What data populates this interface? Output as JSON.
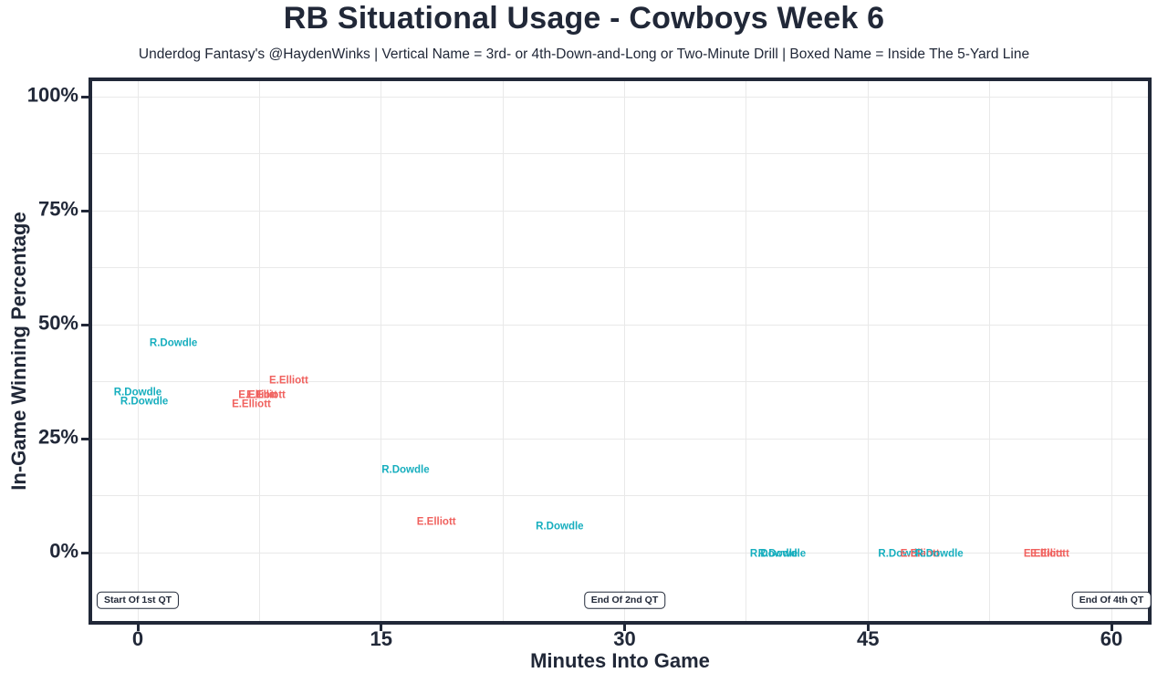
{
  "header": {
    "title": "RB Situational Usage - Cowboys Week 6",
    "subtitle": "Underdog Fantasy's @HaydenWinks | Vertical Name = 3rd- or 4th-Down-and-Long or Two-Minute Drill | Boxed Name = Inside The 5-Yard Line"
  },
  "colors": {
    "ink": "#212838",
    "gridline": "#e9e9e9",
    "background": "#ffffff"
  },
  "chart_data": {
    "type": "scatter",
    "title": "RB Situational Usage - Cowboys Week 6",
    "subtitle": "Underdog Fantasy's @HaydenWinks | Vertical Name = 3rd- or 4th-Down-and-Long or Two-Minute Drill | Boxed Name = Inside The 5-Yard Line",
    "xlabel": "Minutes Into Game",
    "ylabel": "In-Game Winning Percentage",
    "xlim": [
      -2.8,
      62.3
    ],
    "ylim": [
      -15,
      103.4
    ],
    "grid": "on, light gray, major ticks every 15 min / 25% with minor lines at midpoints",
    "legend": "none (points drawn as colored player-name text labels)",
    "x_ticks": [
      {
        "value": 0,
        "label": "0"
      },
      {
        "value": 15,
        "label": "15"
      },
      {
        "value": 30,
        "label": "30"
      },
      {
        "value": 45,
        "label": "45"
      },
      {
        "value": 60,
        "label": "60"
      }
    ],
    "y_ticks": [
      {
        "value": 0,
        "label": "0%"
      },
      {
        "value": 25,
        "label": "25%"
      },
      {
        "value": 50,
        "label": "50%"
      },
      {
        "value": 75,
        "label": "75%"
      },
      {
        "value": 100,
        "label": "100%"
      }
    ],
    "series_colors": {
      "R.Dowdle": "#16aebe",
      "E.Elliott": "#f0615e"
    },
    "points": [
      {
        "player": "R.Dowdle",
        "minutes": 2.2,
        "win_pct": 45.8
      },
      {
        "player": "R.Dowdle",
        "minutes": 0.0,
        "win_pct": 35.0
      },
      {
        "player": "R.Dowdle",
        "minutes": 0.4,
        "win_pct": 33.0
      },
      {
        "player": "E.Elliott",
        "minutes": 9.3,
        "win_pct": 37.6
      },
      {
        "player": "E.Elliott",
        "minutes": 7.4,
        "win_pct": 34.4
      },
      {
        "player": "E.Elliott",
        "minutes": 7.9,
        "win_pct": 34.4
      },
      {
        "player": "E.Elliott",
        "minutes": 7.0,
        "win_pct": 32.4
      },
      {
        "player": "R.Dowdle",
        "minutes": 16.5,
        "win_pct": 18.0
      },
      {
        "player": "E.Elliott",
        "minutes": 18.4,
        "win_pct": 6.6
      },
      {
        "player": "R.Dowdle",
        "minutes": 26.0,
        "win_pct": 5.6
      },
      {
        "player": "R.Dowdle",
        "minutes": 39.2,
        "win_pct": -0.4
      },
      {
        "player": "R.Dowdle",
        "minutes": 39.7,
        "win_pct": -0.4
      },
      {
        "player": "R.Dowdle",
        "minutes": 47.1,
        "win_pct": -0.4
      },
      {
        "player": "E.Elliott",
        "minutes": 48.2,
        "win_pct": -0.4
      },
      {
        "player": "R.Dowdle",
        "minutes": 49.4,
        "win_pct": -0.4
      },
      {
        "player": "E.Elliott",
        "minutes": 55.8,
        "win_pct": -0.4
      },
      {
        "player": "E.Elliott",
        "minutes": 56.2,
        "win_pct": -0.4
      }
    ],
    "annotations": [
      {
        "label": "Start Of 1st QT",
        "minutes": 0,
        "win_pct": -10.4
      },
      {
        "label": "End Of 2nd QT",
        "minutes": 30,
        "win_pct": -10.4
      },
      {
        "label": "End Of 4th QT",
        "minutes": 60,
        "win_pct": -10.4
      }
    ]
  }
}
